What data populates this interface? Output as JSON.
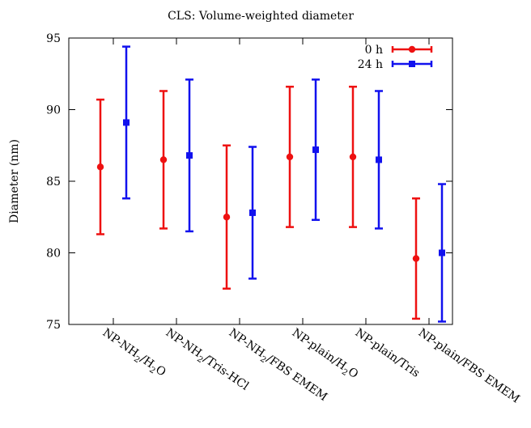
{
  "chart_data": {
    "type": "scatter",
    "title": "CLS: Volume-weighted diameter",
    "xlabel": "",
    "ylabel": "Diameter (nm)",
    "ylim": [
      75,
      95
    ],
    "yticks": [
      75,
      80,
      85,
      90,
      95
    ],
    "grid": false,
    "legend_position": "top-right",
    "categories": [
      {
        "base": "NP-NH",
        "sub": "2",
        "suffix": "/H",
        "sub2": "2",
        "suffix2": "O"
      },
      {
        "base": "NP-NH",
        "sub": "2",
        "suffix": "/Tris-HCl",
        "sub2": "",
        "suffix2": ""
      },
      {
        "base": "NP-NH",
        "sub": "2",
        "suffix": "/FBS EMEM",
        "sub2": "",
        "suffix2": ""
      },
      {
        "base": "NP-plain/H",
        "sub": "2",
        "suffix": "O",
        "sub2": "",
        "suffix2": ""
      },
      {
        "base": "NP-plain/Tris",
        "sub": "",
        "suffix": "",
        "sub2": "",
        "suffix2": ""
      },
      {
        "base": "NP-plain/FBS EMEM",
        "sub": "",
        "suffix": "",
        "sub2": "",
        "suffix2": ""
      }
    ],
    "series": [
      {
        "name": "0 h",
        "color": "#ee1111",
        "marker": "circle",
        "values": [
          86.0,
          86.5,
          82.5,
          86.7,
          86.7,
          79.6
        ],
        "lower": [
          81.3,
          81.7,
          77.5,
          81.8,
          81.8,
          75.4
        ],
        "upper": [
          90.7,
          91.3,
          87.5,
          91.6,
          91.6,
          83.8
        ]
      },
      {
        "name": "24 h",
        "color": "#1111ee",
        "marker": "square",
        "values": [
          89.1,
          86.8,
          82.8,
          87.2,
          86.5,
          80.0
        ],
        "lower": [
          83.8,
          81.5,
          78.2,
          82.3,
          81.7,
          75.2
        ],
        "upper": [
          94.4,
          92.1,
          87.4,
          92.1,
          91.3,
          84.8
        ]
      }
    ]
  }
}
